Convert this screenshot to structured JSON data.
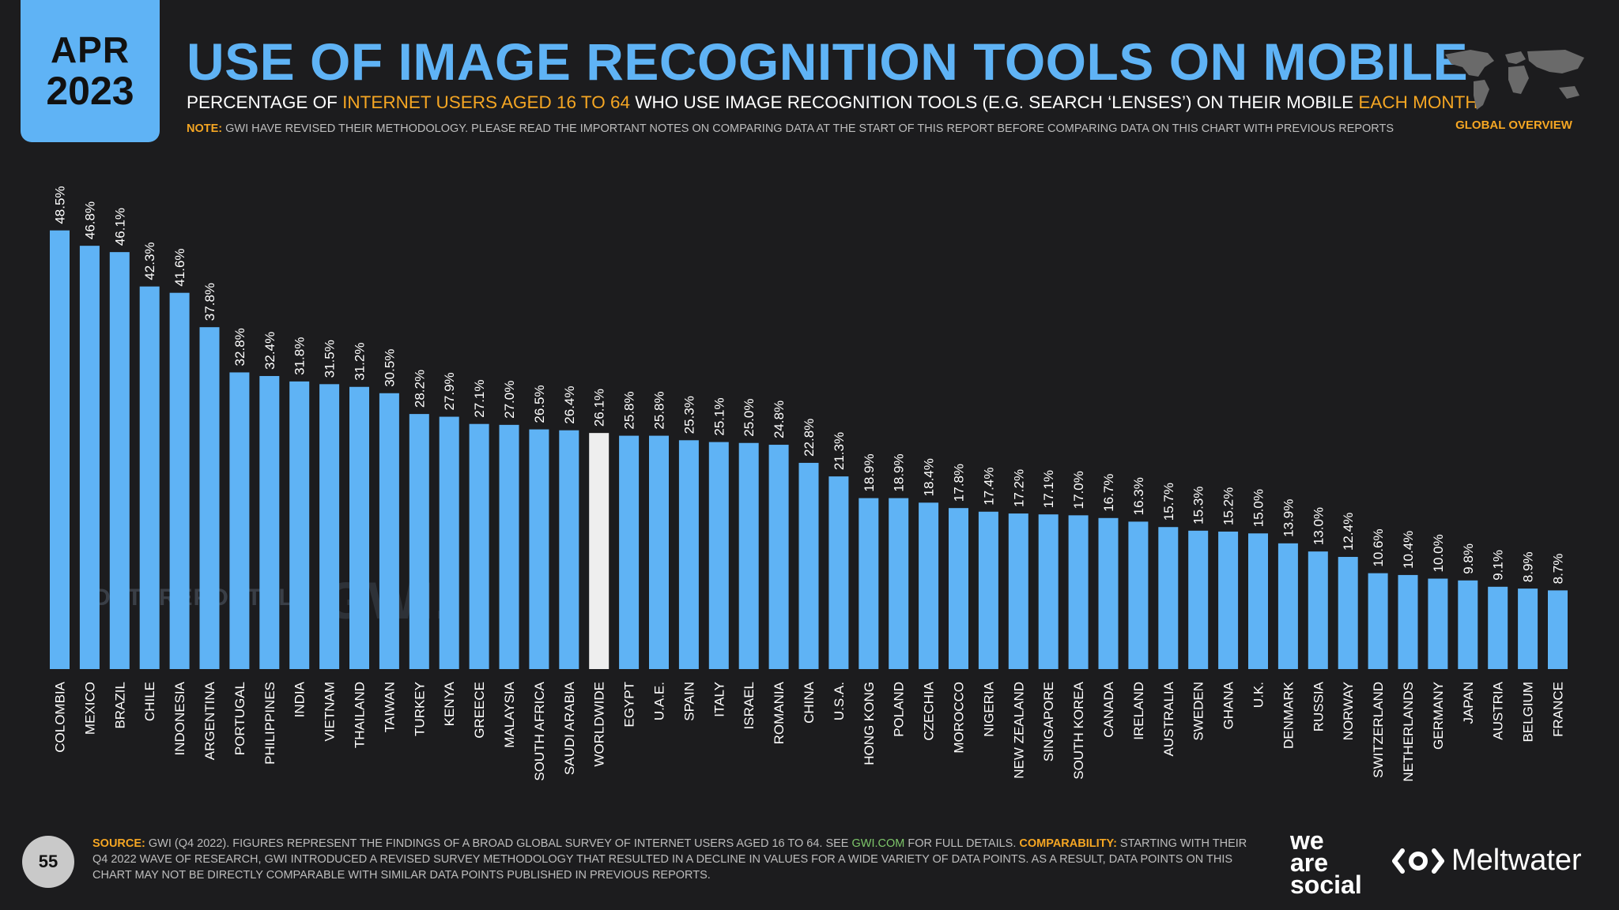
{
  "header": {
    "month": "APR",
    "year": "2023",
    "title": "USE OF IMAGE RECOGNITION TOOLS ON MOBILE",
    "subtitle_part1": "PERCENTAGE OF ",
    "subtitle_hl1": "INTERNET USERS AGED 16 TO 64",
    "subtitle_part2": " WHO USE IMAGE RECOGNITION TOOLS (E.G. SEARCH ‘LENSES’) ON THEIR MOBILE ",
    "subtitle_hl2": "EACH MONTH",
    "note_label": "NOTE:",
    "note_text": " GWI HAVE REVISED THEIR METHODOLOGY. PLEASE READ THE IMPORTANT NOTES ON COMPARING DATA AT THE START OF THIS REPORT BEFORE COMPARING DATA ON THIS CHART WITH PREVIOUS REPORTS",
    "global_label": "GLOBAL OVERVIEW",
    "map_icon": "world-map-icon"
  },
  "watermarks": {
    "datareportal": "DATAREPORTAL",
    "gwi": "GWI."
  },
  "chart_data": {
    "type": "bar",
    "ylim": [
      0,
      50
    ],
    "grid": false,
    "legend": "none",
    "bar_color": "#5fb3f5",
    "highlight_color": "#eeeeee",
    "highlight_category": "WORLDWIDE",
    "categories": [
      "COLOMBIA",
      "MEXICO",
      "BRAZIL",
      "CHILE",
      "INDONESIA",
      "ARGENTINA",
      "PORTUGAL",
      "PHILIPPINES",
      "INDIA",
      "VIETNAM",
      "THAILAND",
      "TAIWAN",
      "TURKEY",
      "KENYA",
      "GREECE",
      "MALAYSIA",
      "SOUTH AFRICA",
      "SAUDI ARABIA",
      "WORLDWIDE",
      "EGYPT",
      "U.A.E.",
      "SPAIN",
      "ITALY",
      "ISRAEL",
      "ROMANIA",
      "CHINA",
      "U.S.A.",
      "HONG KONG",
      "POLAND",
      "CZECHIA",
      "MOROCCO",
      "NIGERIA",
      "NEW ZEALAND",
      "SINGAPORE",
      "SOUTH KOREA",
      "CANADA",
      "IRELAND",
      "AUSTRALIA",
      "SWEDEN",
      "GHANA",
      "U.K.",
      "DENMARK",
      "RUSSIA",
      "NORWAY",
      "SWITZERLAND",
      "NETHERLANDS",
      "GERMANY",
      "JAPAN",
      "AUSTRIA",
      "BELGIUM",
      "FRANCE"
    ],
    "values": [
      48.5,
      46.8,
      46.1,
      42.3,
      41.6,
      37.8,
      32.8,
      32.4,
      31.8,
      31.5,
      31.2,
      30.5,
      28.2,
      27.9,
      27.1,
      27.0,
      26.5,
      26.4,
      26.1,
      25.8,
      25.8,
      25.3,
      25.1,
      25.0,
      24.8,
      22.8,
      21.3,
      18.9,
      18.9,
      18.4,
      17.8,
      17.4,
      17.2,
      17.1,
      17.0,
      16.7,
      16.3,
      15.7,
      15.3,
      15.2,
      15.0,
      13.9,
      13.0,
      12.4,
      10.6,
      10.4,
      10.0,
      9.8,
      9.1,
      8.9,
      8.7
    ],
    "labels": [
      "48.5%",
      "46.8%",
      "46.1%",
      "42.3%",
      "41.6%",
      "37.8%",
      "32.8%",
      "32.4%",
      "31.8%",
      "31.5%",
      "31.2%",
      "30.5%",
      "28.2%",
      "27.9%",
      "27.1%",
      "27.0%",
      "26.5%",
      "26.4%",
      "26.1%",
      "25.8%",
      "25.8%",
      "25.3%",
      "25.1%",
      "25.0%",
      "24.8%",
      "22.8%",
      "21.3%",
      "18.9%",
      "18.9%",
      "18.4%",
      "17.8%",
      "17.4%",
      "17.2%",
      "17.1%",
      "17.0%",
      "16.7%",
      "16.3%",
      "15.7%",
      "15.3%",
      "15.2%",
      "15.0%",
      "13.9%",
      "13.0%",
      "12.4%",
      "10.6%",
      "10.4%",
      "10.0%",
      "9.8%",
      "9.1%",
      "8.9%",
      "8.7%"
    ]
  },
  "footer": {
    "page_number": "55",
    "source_label": "SOURCE:",
    "source_text1": " GWI (Q4 2022). FIGURES REPRESENT THE FINDINGS OF A BROAD GLOBAL SURVEY OF INTERNET USERS AGED 16 TO 64. SEE ",
    "source_link": "GWI.COM",
    "source_text2": " FOR FULL DETAILS. ",
    "comparability_label": "COMPARABILITY:",
    "comparability_text": " STARTING WITH THEIR Q4 2022 WAVE OF RESEARCH, GWI INTRODUCED A REVISED SURVEY METHODOLOGY THAT RESULTED IN A DECLINE IN VALUES FOR A WIDE VARIETY OF DATA POINTS. AS A RESULT, DATA POINTS ON THIS CHART MAY NOT BE DIRECTLY COMPARABLE WITH SIMILAR DATA POINTS PUBLISHED IN PREVIOUS REPORTS.",
    "brand1_line1": "we",
    "brand1_line2": "are",
    "brand1_line3": "social",
    "brand2": "Meltwater"
  }
}
